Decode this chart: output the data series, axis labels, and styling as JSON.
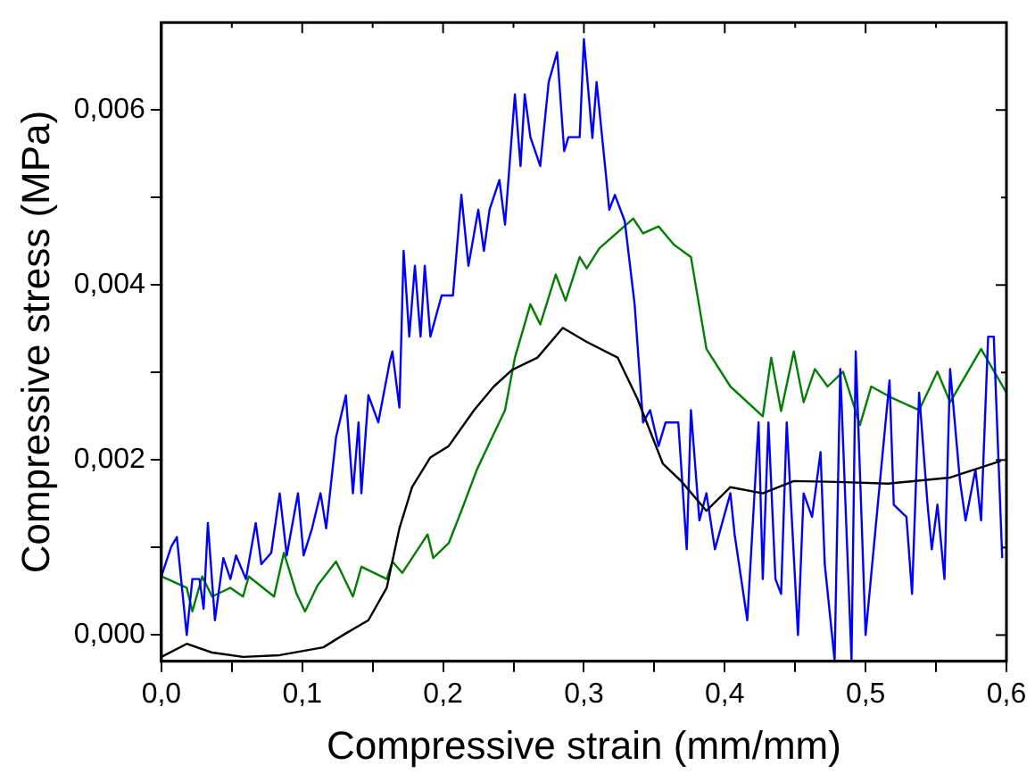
{
  "chart_data": {
    "type": "line",
    "xlabel": "Compressive strain (mm/mm)",
    "ylabel": "Compressive stress (MPa)",
    "xlim": [
      0,
      0.6
    ],
    "ylim": [
      -0.0003,
      0.007
    ],
    "xticks": [
      {
        "value": 0,
        "label": "0,0"
      },
      {
        "value": 0.05,
        "label": null
      },
      {
        "value": 0.1,
        "label": "0,1"
      },
      {
        "value": 0.15,
        "label": null
      },
      {
        "value": 0.2,
        "label": "0,2"
      },
      {
        "value": 0.25,
        "label": null
      },
      {
        "value": 0.3,
        "label": "0,3"
      },
      {
        "value": 0.35,
        "label": null
      },
      {
        "value": 0.4,
        "label": "0,4"
      },
      {
        "value": 0.45,
        "label": null
      },
      {
        "value": 0.5,
        "label": "0,5"
      },
      {
        "value": 0.55,
        "label": null
      },
      {
        "value": 0.6,
        "label": "0,6"
      }
    ],
    "yticks": [
      {
        "value": 0,
        "label": "0,000"
      },
      {
        "value": 0.001,
        "label": null
      },
      {
        "value": 0.002,
        "label": "0,002"
      },
      {
        "value": 0.003,
        "label": null
      },
      {
        "value": 0.004,
        "label": "0,004"
      },
      {
        "value": 0.005,
        "label": null
      },
      {
        "value": 0.006,
        "label": "0,006"
      }
    ],
    "grid": false,
    "legend": false,
    "marker": "none",
    "line_style": "solid",
    "series": [
      {
        "color": "#000000",
        "x": [
          0,
          0.018,
          0.036,
          0.058,
          0.084,
          0.115,
          0.129,
          0.147,
          0.16,
          0.169,
          0.178,
          0.191,
          0.204,
          0.222,
          0.236,
          0.249,
          0.267,
          0.285,
          0.302,
          0.324,
          0.338,
          0.356,
          0.369,
          0.387,
          0.404,
          0.427,
          0.449,
          0.48,
          0.516,
          0.56,
          0.596
        ],
        "values": [
          -0.00025,
          -0.0001,
          -0.0002,
          -0.00025,
          -0.00023,
          -0.00014,
          0,
          0.00017,
          0.00054,
          0.00122,
          0.00169,
          0.00203,
          0.00216,
          0.00257,
          0.00284,
          0.00303,
          0.00317,
          0.00351,
          0.00335,
          0.00317,
          0.0027,
          0.00196,
          0.00176,
          0.00142,
          0.00169,
          0.00162,
          0.00176,
          0.00175,
          0.00173,
          0.0018,
          0.00199
        ]
      },
      {
        "color": "#0000ff",
        "x": [
          0,
          0.007,
          0.011,
          0.018,
          0.022,
          0.027,
          0.03,
          0.033,
          0.038,
          0.044,
          0.049,
          0.053,
          0.06,
          0.067,
          0.071,
          0.078,
          0.084,
          0.089,
          0.097,
          0.101,
          0.107,
          0.113,
          0.117,
          0.124,
          0.131,
          0.136,
          0.14,
          0.142,
          0.147,
          0.154,
          0.162,
          0.164,
          0.169,
          0.172,
          0.176,
          0.18,
          0.184,
          0.187,
          0.191,
          0.199,
          0.207,
          0.213,
          0.218,
          0.225,
          0.229,
          0.233,
          0.24,
          0.244,
          0.251,
          0.255,
          0.258,
          0.262,
          0.269,
          0.275,
          0.281,
          0.286,
          0.289,
          0.297,
          0.3,
          0.306,
          0.309,
          0.316,
          0.318,
          0.322,
          0.329,
          0.336,
          0.342,
          0.347,
          0.353,
          0.358,
          0.367,
          0.373,
          0.376,
          0.382,
          0.387,
          0.393,
          0.404,
          0.407,
          0.416,
          0.424,
          0.427,
          0.431,
          0.436,
          0.44,
          0.444,
          0.452,
          0.456,
          0.462,
          0.468,
          0.471,
          0.478,
          0.482,
          0.49,
          0.493,
          0.5,
          0.509,
          0.517,
          0.52,
          0.529,
          0.533,
          0.538,
          0.544,
          0.547,
          0.551,
          0.556,
          0.56,
          0.567,
          0.571,
          0.578,
          0.582,
          0.587,
          0.591,
          0.597
        ],
        "values": [
          0.00067,
          0.00101,
          0.00112,
          0,
          0.00064,
          0.00064,
          0.0003,
          0.00128,
          0.00017,
          0.00088,
          0.00064,
          0.00091,
          0.00064,
          0.00128,
          0.00081,
          0.00094,
          0.00162,
          0.00091,
          0.00162,
          0.00091,
          0.00122,
          0.00162,
          0.00122,
          0.00226,
          0.00274,
          0.00162,
          0.00243,
          0.00162,
          0.00274,
          0.00243,
          0.00311,
          0.00324,
          0.0026,
          0.00439,
          0.00341,
          0.00422,
          0.00341,
          0.00422,
          0.00341,
          0.00388,
          0.00388,
          0.00503,
          0.00422,
          0.00486,
          0.00439,
          0.00486,
          0.0052,
          0.00469,
          0.00618,
          0.00536,
          0.00618,
          0.00569,
          0.00536,
          0.00632,
          0.00666,
          0.00553,
          0.00569,
          0.00569,
          0.00681,
          0.00568,
          0.00632,
          0.0052,
          0.00486,
          0.00503,
          0.00473,
          0.00378,
          0.00243,
          0.00257,
          0.00216,
          0.00243,
          0.00243,
          0.00098,
          0.00257,
          0.00131,
          0.00162,
          0.00098,
          0.00162,
          0.00115,
          0.00017,
          0.00243,
          0.00064,
          0.00243,
          0.00064,
          0.00047,
          0.00243,
          0,
          0.00162,
          0.00135,
          0.00209,
          0.00081,
          -0.00029,
          0.00304,
          -0.00029,
          0.00324,
          0,
          0.00155,
          0.00291,
          0.00149,
          0.00135,
          0.00047,
          0.00277,
          0.00149,
          0.00098,
          0.00149,
          0.00064,
          0.00304,
          0.00176,
          0.00131,
          0.00189,
          0.00131,
          0.00341,
          0.00341,
          0.00088
        ]
      },
      {
        "color": "#008000",
        "x": [
          0,
          0.018,
          0.022,
          0.029,
          0.036,
          0.049,
          0.058,
          0.062,
          0.08,
          0.087,
          0.096,
          0.102,
          0.111,
          0.124,
          0.136,
          0.142,
          0.16,
          0.164,
          0.171,
          0.178,
          0.189,
          0.193,
          0.204,
          0.213,
          0.224,
          0.236,
          0.244,
          0.251,
          0.262,
          0.269,
          0.28,
          0.287,
          0.297,
          0.302,
          0.311,
          0.335,
          0.342,
          0.353,
          0.364,
          0.376,
          0.387,
          0.404,
          0.427,
          0.433,
          0.44,
          0.449,
          0.456,
          0.464,
          0.473,
          0.484,
          0.496,
          0.504,
          0.52,
          0.538,
          0.551,
          0.56,
          0.582,
          0.6
        ],
        "values": [
          0.00067,
          0.00054,
          0.00027,
          0.00067,
          0.00044,
          0.00054,
          0.00044,
          0.00067,
          0.00044,
          0.00094,
          0.00047,
          0.00027,
          0.00057,
          0.00084,
          0.00044,
          0.00078,
          0.00064,
          0.00084,
          0.00071,
          0.00088,
          0.00115,
          0.00088,
          0.00105,
          0.00142,
          0.00189,
          0.0023,
          0.00257,
          0.00317,
          0.00378,
          0.00355,
          0.00412,
          0.00382,
          0.00432,
          0.00419,
          0.00442,
          0.00476,
          0.00459,
          0.00467,
          0.00446,
          0.00432,
          0.00327,
          0.00284,
          0.0025,
          0.00317,
          0.00256,
          0.00324,
          0.00266,
          0.00304,
          0.00284,
          0.00301,
          0.0024,
          0.00284,
          0.0027,
          0.00257,
          0.00301,
          0.00266,
          0.00327,
          0.00277
        ]
      }
    ]
  }
}
